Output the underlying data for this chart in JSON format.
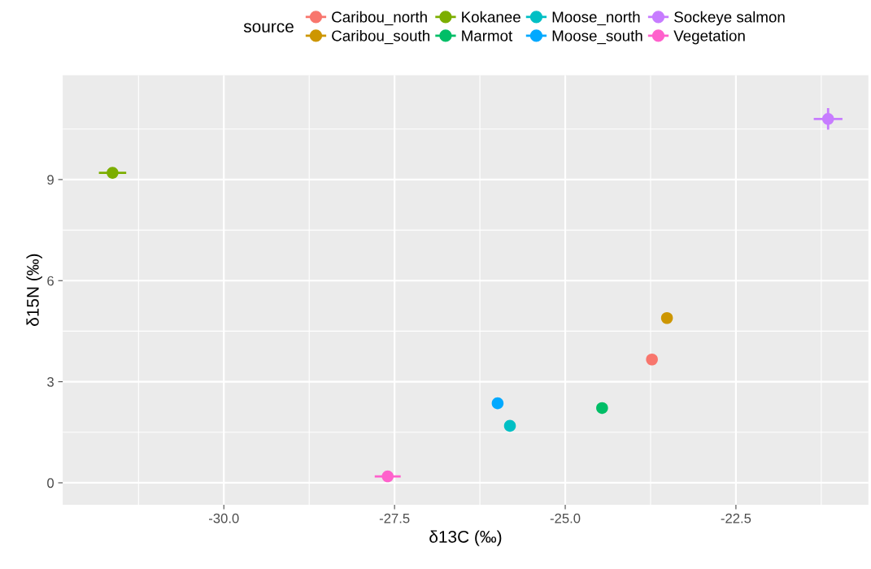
{
  "chart_data": {
    "type": "scatter",
    "xlabel": "δ13C (‰)",
    "ylabel": "δ15N (‰)",
    "legend_title": "source",
    "legend": "top",
    "grid": true,
    "marker": "circle",
    "xlim": [
      -32.36,
      -20.56
    ],
    "ylim": [
      -0.65,
      12.1
    ],
    "xticks": [
      {
        "value": -30,
        "label": "-30.0"
      },
      -27.5,
      {
        "value": -25,
        "label": "-25.0"
      },
      -22.5
    ],
    "yticks": [
      0,
      3,
      6,
      9
    ],
    "series": [
      {
        "name": "Caribou_north",
        "color": "#f8766d",
        "x": [
          -23.73
        ],
        "values": [
          3.66
        ],
        "xerrors": [
          null
        ],
        "errors": [
          null
        ]
      },
      {
        "name": "Caribou_south",
        "color": "#cd9600",
        "x": [
          -23.51
        ],
        "values": [
          4.89
        ],
        "xerrors": [
          null
        ],
        "errors": [
          null
        ]
      },
      {
        "name": "Kokanee",
        "color": "#7cae00",
        "x": [
          -31.63
        ],
        "values": [
          9.2
        ],
        "xerrors": [
          0.2
        ],
        "errors": [
          null
        ]
      },
      {
        "name": "Marmot",
        "color": "#00be67",
        "x": [
          -24.46
        ],
        "values": [
          2.22
        ],
        "xerrors": [
          null
        ],
        "errors": [
          null
        ]
      },
      {
        "name": "Moose_north",
        "color": "#00bfc4",
        "x": [
          -25.81
        ],
        "values": [
          1.69
        ],
        "xerrors": [
          null
        ],
        "errors": [
          null
        ]
      },
      {
        "name": "Moose_south",
        "color": "#00a9ff",
        "x": [
          -25.99
        ],
        "values": [
          2.36
        ],
        "xerrors": [
          null
        ],
        "errors": [
          null
        ]
      },
      {
        "name": "Sockeye salmon",
        "color": "#c77cff",
        "x": [
          -21.15
        ],
        "values": [
          10.8
        ],
        "xerrors": [
          0.21
        ],
        "errors": [
          0.32
        ]
      },
      {
        "name": "Vegetation",
        "color": "#ff61cc",
        "x": [
          -27.6
        ],
        "values": [
          0.19
        ],
        "xerrors": [
          0.19
        ],
        "errors": [
          null
        ]
      }
    ]
  }
}
